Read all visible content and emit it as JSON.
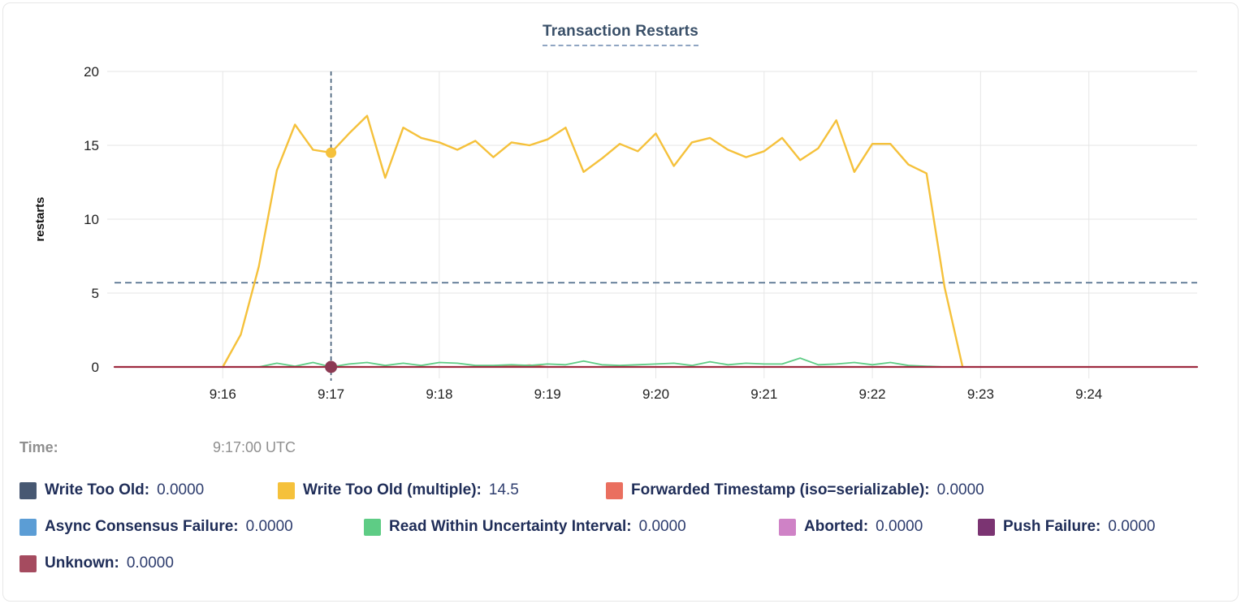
{
  "time_row": {
    "label": "Time:",
    "value": "9:17:00 UTC"
  },
  "chart_data": {
    "type": "line",
    "title": "Transaction Restarts",
    "xlabel": "",
    "ylabel": "restarts",
    "ylim": [
      0,
      20
    ],
    "yticks": [
      0,
      5,
      10,
      15,
      20
    ],
    "xticks": [
      {
        "t": 60,
        "label": "9:16"
      },
      {
        "t": 120,
        "label": "9:17"
      },
      {
        "t": 180,
        "label": "9:18"
      },
      {
        "t": 240,
        "label": "9:19"
      },
      {
        "t": 300,
        "label": "9:20"
      },
      {
        "t": 360,
        "label": "9:21"
      },
      {
        "t": 420,
        "label": "9:22"
      },
      {
        "t": 480,
        "label": "9:23"
      },
      {
        "t": 540,
        "label": "9:24"
      }
    ],
    "x_domain_seconds": [
      0,
      600
    ],
    "x_domain_labels": [
      "9:15:00",
      "9:25:00"
    ],
    "grid": true,
    "legend_position": "bottom",
    "hline_dashed": {
      "value": 5.7,
      "color": "#54718E"
    },
    "crosshair": {
      "t": 120,
      "time_label": "9:17:00 UTC",
      "color": "#3A5671",
      "markers": [
        {
          "series": 1,
          "value": 14.5,
          "r": 6.5,
          "color": "#F5C13B"
        },
        {
          "series": 7,
          "value": 0,
          "r": 7.5,
          "color": "#8C3A53"
        }
      ]
    },
    "series": [
      {
        "name": "Write Too Old",
        "label": "Write Too Old:",
        "value": "0.0000",
        "color": "#475872",
        "points": []
      },
      {
        "name": "Write Too Old (multiple)",
        "label": "Write Too Old (multiple):",
        "value": "14.5",
        "color": "#F5C13B",
        "width": 2.4,
        "points": [
          [
            60,
            0
          ],
          [
            70,
            2.2
          ],
          [
            80,
            6.8
          ],
          [
            90,
            13.3
          ],
          [
            100,
            16.4
          ],
          [
            110,
            14.7
          ],
          [
            120,
            14.5
          ],
          [
            130,
            15.8
          ],
          [
            140,
            17.0
          ],
          [
            150,
            12.8
          ],
          [
            160,
            16.2
          ],
          [
            170,
            15.5
          ],
          [
            180,
            15.2
          ],
          [
            190,
            14.7
          ],
          [
            200,
            15.3
          ],
          [
            210,
            14.2
          ],
          [
            220,
            15.2
          ],
          [
            230,
            15.0
          ],
          [
            240,
            15.4
          ],
          [
            250,
            16.2
          ],
          [
            260,
            13.2
          ],
          [
            270,
            14.1
          ],
          [
            280,
            15.1
          ],
          [
            290,
            14.6
          ],
          [
            300,
            15.8
          ],
          [
            310,
            13.6
          ],
          [
            320,
            15.2
          ],
          [
            330,
            15.5
          ],
          [
            340,
            14.7
          ],
          [
            350,
            14.2
          ],
          [
            360,
            14.6
          ],
          [
            370,
            15.5
          ],
          [
            380,
            14.0
          ],
          [
            390,
            14.8
          ],
          [
            400,
            16.7
          ],
          [
            410,
            13.2
          ],
          [
            420,
            15.1
          ],
          [
            430,
            15.1
          ],
          [
            440,
            13.7
          ],
          [
            450,
            13.1
          ],
          [
            460,
            5.4
          ],
          [
            470,
            0
          ]
        ]
      },
      {
        "name": "Forwarded Timestamp (iso=serializable)",
        "label": "Forwarded Timestamp (iso=serializable):",
        "value": "0.0000",
        "color": "#EA6F5F",
        "width": 2,
        "points": [
          [
            60,
            0
          ],
          [
            210,
            0
          ],
          [
            220,
            0.05
          ],
          [
            230,
            0.12
          ],
          [
            240,
            0
          ],
          [
            470,
            0
          ]
        ]
      },
      {
        "name": "Async Consensus Failure",
        "label": "Async Consensus Failure:",
        "value": "0.0000",
        "color": "#5B9DD5",
        "points": []
      },
      {
        "name": "Read Within Uncertainty Interval",
        "label": "Read Within Uncertainty Interval:",
        "value": "0.0000",
        "color": "#5ECC85",
        "width": 1.8,
        "points": [
          [
            80,
            0
          ],
          [
            90,
            0.25
          ],
          [
            100,
            0.05
          ],
          [
            110,
            0.3
          ],
          [
            120,
            0
          ],
          [
            130,
            0.2
          ],
          [
            140,
            0.3
          ],
          [
            150,
            0.1
          ],
          [
            160,
            0.25
          ],
          [
            170,
            0.1
          ],
          [
            180,
            0.3
          ],
          [
            190,
            0.25
          ],
          [
            200,
            0.1
          ],
          [
            210,
            0.1
          ],
          [
            220,
            0.15
          ],
          [
            230,
            0.1
          ],
          [
            240,
            0.2
          ],
          [
            250,
            0.15
          ],
          [
            260,
            0.4
          ],
          [
            270,
            0.15
          ],
          [
            280,
            0.1
          ],
          [
            290,
            0.15
          ],
          [
            300,
            0.2
          ],
          [
            310,
            0.25
          ],
          [
            320,
            0.1
          ],
          [
            330,
            0.35
          ],
          [
            340,
            0.15
          ],
          [
            350,
            0.25
          ],
          [
            360,
            0.2
          ],
          [
            370,
            0.2
          ],
          [
            380,
            0.6
          ],
          [
            390,
            0.15
          ],
          [
            400,
            0.2
          ],
          [
            410,
            0.3
          ],
          [
            420,
            0.15
          ],
          [
            430,
            0.3
          ],
          [
            440,
            0.1
          ],
          [
            450,
            0.05
          ],
          [
            460,
            0
          ]
        ]
      },
      {
        "name": "Aborted",
        "label": "Aborted:",
        "value": "0.0000",
        "color": "#CF82C6",
        "points": []
      },
      {
        "name": "Push Failure",
        "label": "Push Failure:",
        "value": "0.0000",
        "color": "#7B3472",
        "points": []
      },
      {
        "name": "Unknown",
        "label": "Unknown:",
        "value": "0.0000",
        "color": "#A54B5F",
        "line_color": "#9E2C41",
        "width": 2.2,
        "points": [
          [
            0,
            0
          ],
          [
            600,
            0
          ]
        ]
      }
    ],
    "legend_rows": [
      [
        0,
        1,
        2
      ],
      [
        3,
        4,
        5,
        6
      ],
      [
        7
      ]
    ]
  }
}
